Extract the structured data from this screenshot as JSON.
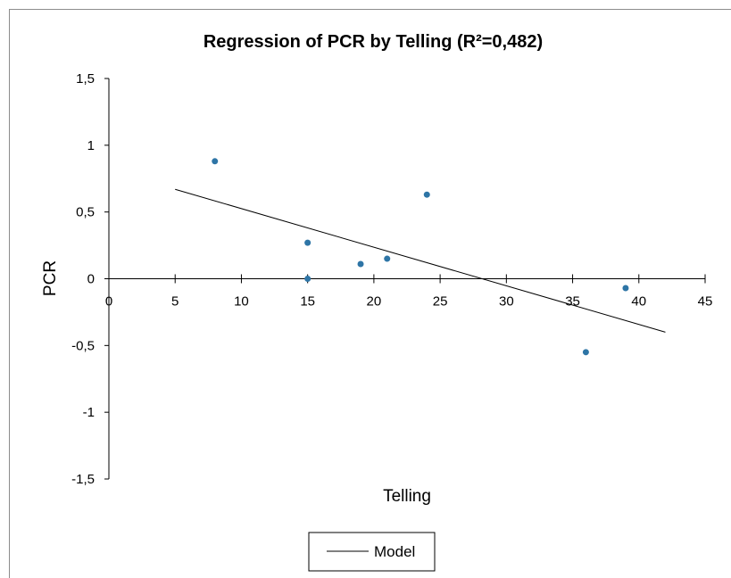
{
  "chart_data": {
    "type": "scatter",
    "title": "Regression of PCR by Telling (R²=0,482)",
    "xlabel": "Telling",
    "ylabel": "PCR",
    "xlim": [
      0,
      45
    ],
    "ylim": [
      -1.5,
      1.5
    ],
    "x_ticks": [
      "0",
      "5",
      "10",
      "15",
      "20",
      "25",
      "30",
      "35",
      "40",
      "45"
    ],
    "y_ticks": [
      "1,5",
      "1",
      "0,5",
      "0",
      "-0,5",
      "-1",
      "-1,5"
    ],
    "points": [
      {
        "x": 8,
        "y": 0.88
      },
      {
        "x": 15,
        "y": 0.27
      },
      {
        "x": 15,
        "y": 0.0
      },
      {
        "x": 19,
        "y": 0.11
      },
      {
        "x": 21,
        "y": 0.15
      },
      {
        "x": 24,
        "y": 0.63
      },
      {
        "x": 36,
        "y": -0.55
      },
      {
        "x": 39,
        "y": -0.07
      }
    ],
    "model_line": {
      "name": "Model",
      "x1": 5,
      "y1": 0.67,
      "x2": 42,
      "y2": -0.4
    },
    "legend": {
      "entries": [
        "Model"
      ],
      "placement": "bottom-center"
    },
    "grid": false,
    "colors": {
      "points": "#2e75a6",
      "line": "#000000",
      "axis": "#000000"
    }
  }
}
